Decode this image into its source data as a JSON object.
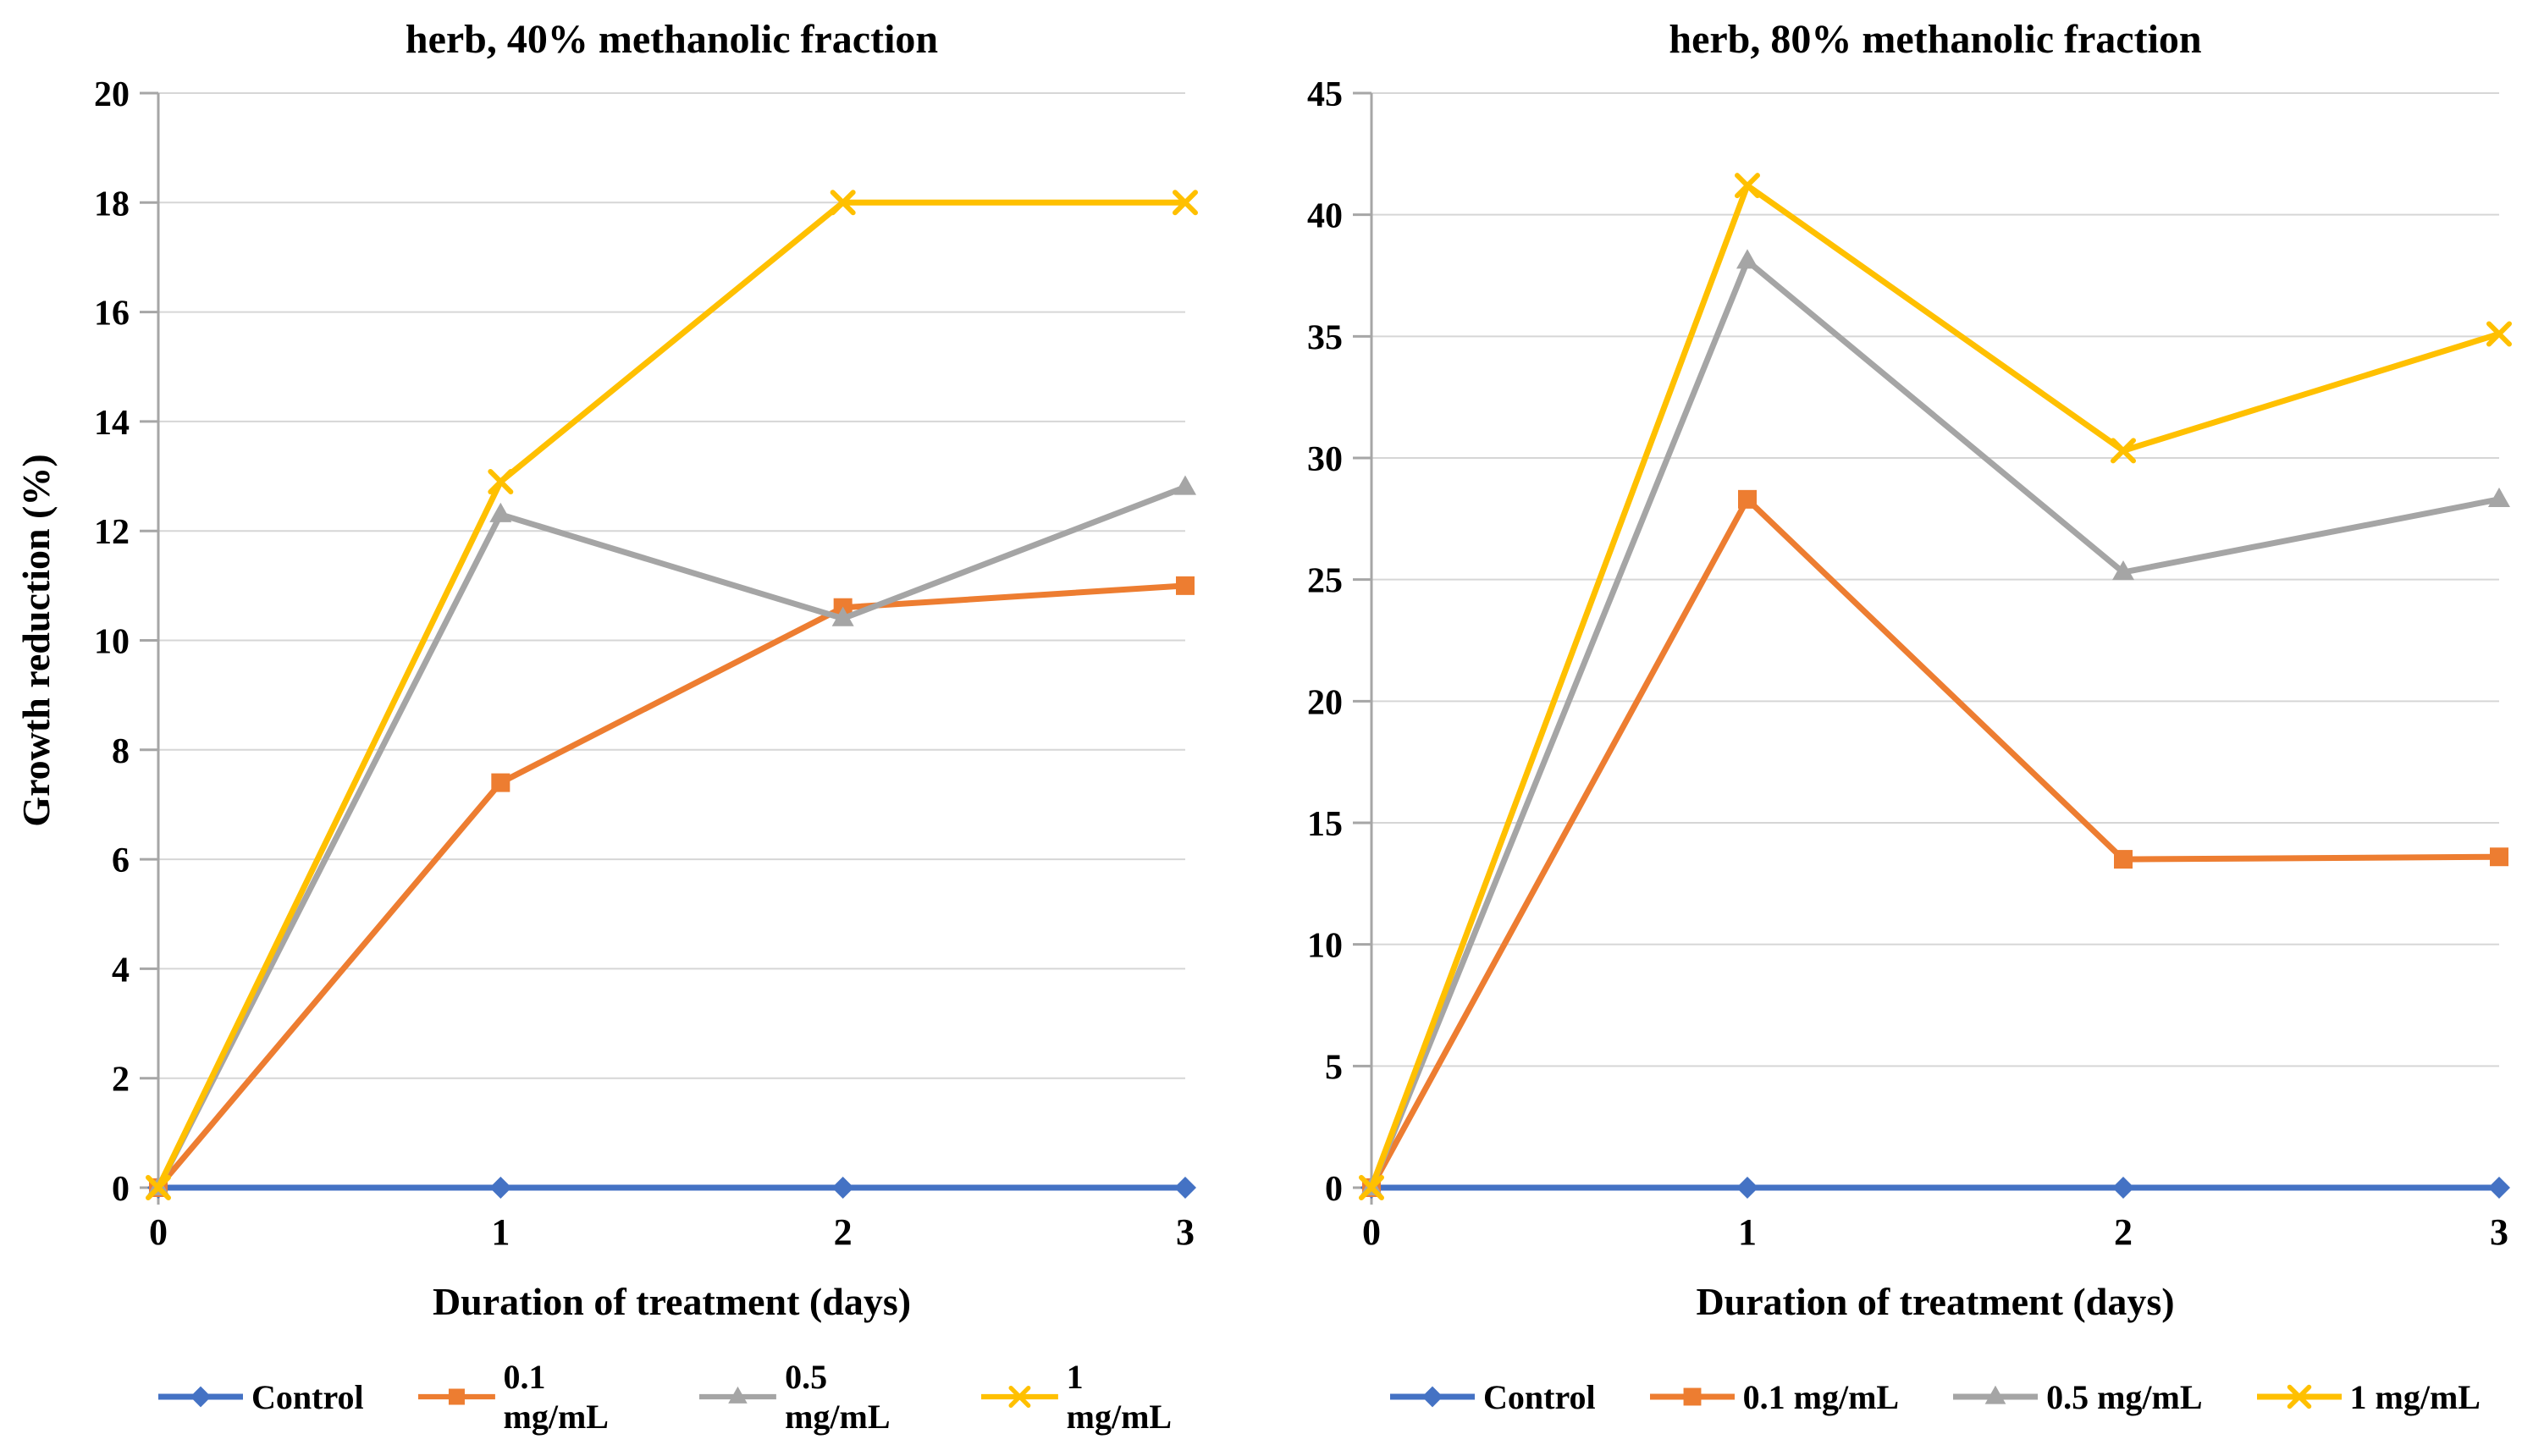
{
  "figure": {
    "background": "#ffffff",
    "text_color": "#000000",
    "gridline_color": "#D6D6D6",
    "axis_color": "#A6A6A6"
  },
  "chart_data": [
    {
      "type": "line",
      "title": "herb, 40% methanolic fraction",
      "xlabel": "Duration of treatment (days)",
      "ylabel": "Growth reduction (%)",
      "x": [
        0,
        1,
        2,
        3
      ],
      "xticks": [
        "0",
        "1",
        "2",
        "3"
      ],
      "yticks": [
        0,
        2,
        4,
        6,
        8,
        10,
        12,
        14,
        16,
        18,
        20
      ],
      "ylim": [
        0,
        20
      ],
      "grid": true,
      "legend_position": "bottom",
      "series": [
        {
          "name": "Control",
          "color": "#4472C4",
          "marker": "diamond",
          "values": [
            0,
            0,
            0,
            0
          ]
        },
        {
          "name": "0.1 mg/mL",
          "color": "#ED7D31",
          "marker": "square",
          "values": [
            0,
            7.4,
            10.6,
            11
          ]
        },
        {
          "name": "0.5 mg/mL",
          "color": "#A5A5A5",
          "marker": "triangle",
          "values": [
            0,
            12.3,
            10.4,
            12.8
          ]
        },
        {
          "name": "1 mg/mL",
          "color": "#FFC000",
          "marker": "x",
          "values": [
            0,
            12.9,
            18,
            18
          ]
        }
      ]
    },
    {
      "type": "line",
      "title": "herb, 80% methanolic fraction",
      "xlabel": "Duration of treatment (days)",
      "ylabel": "",
      "x": [
        0,
        1,
        2,
        3
      ],
      "xticks": [
        "0",
        "1",
        "2",
        "3"
      ],
      "yticks": [
        0,
        5,
        10,
        15,
        20,
        25,
        30,
        35,
        40,
        45
      ],
      "ylim": [
        0,
        45
      ],
      "grid": true,
      "legend_position": "bottom",
      "series": [
        {
          "name": "Control",
          "color": "#4472C4",
          "marker": "diamond",
          "values": [
            0,
            0,
            0,
            0
          ]
        },
        {
          "name": "0.1 mg/mL",
          "color": "#ED7D31",
          "marker": "square",
          "values": [
            0,
            28.3,
            13.5,
            13.6
          ]
        },
        {
          "name": "0.5 mg/mL",
          "color": "#A5A5A5",
          "marker": "triangle",
          "values": [
            0,
            38.1,
            25.3,
            28.3
          ]
        },
        {
          "name": "1 mg/mL",
          "color": "#FFC000",
          "marker": "x",
          "values": [
            0,
            41.2,
            30.3,
            35.1
          ]
        }
      ]
    }
  ]
}
